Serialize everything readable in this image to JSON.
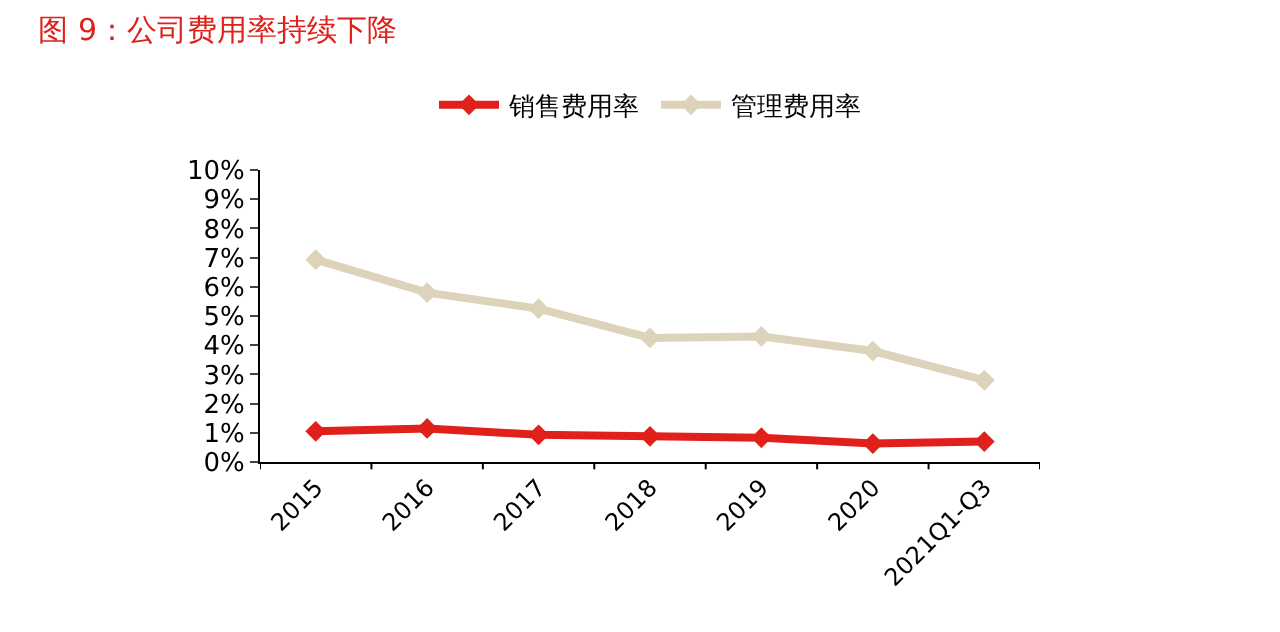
{
  "chart_data": {
    "type": "line",
    "title": "图 9：公司费用率持续下降",
    "categories": [
      "2015",
      "2016",
      "2017",
      "2018",
      "2019",
      "2020",
      "2021Q1-Q3"
    ],
    "series": [
      {
        "name": "销售费用率",
        "color": "#e0201b",
        "values": [
          1.05,
          1.15,
          0.93,
          0.88,
          0.83,
          0.63,
          0.7
        ]
      },
      {
        "name": "管理费用率",
        "color": "#ddd3bb",
        "values": [
          6.93,
          5.8,
          5.25,
          4.25,
          4.3,
          3.8,
          2.8
        ]
      }
    ],
    "ylim": [
      0,
      10
    ],
    "yticks": [
      {
        "value": 0,
        "label": "0%"
      },
      {
        "value": 1,
        "label": "1%"
      },
      {
        "value": 2,
        "label": "2%"
      },
      {
        "value": 3,
        "label": "3%"
      },
      {
        "value": 4,
        "label": "4%"
      },
      {
        "value": 5,
        "label": "5%"
      },
      {
        "value": 6,
        "label": "6%"
      },
      {
        "value": 7,
        "label": "7%"
      },
      {
        "value": 8,
        "label": "8%"
      },
      {
        "value": 9,
        "label": "9%"
      },
      {
        "value": 10,
        "label": "10%"
      }
    ],
    "legend": "top",
    "marker": "diamond",
    "line_style": "solid"
  }
}
